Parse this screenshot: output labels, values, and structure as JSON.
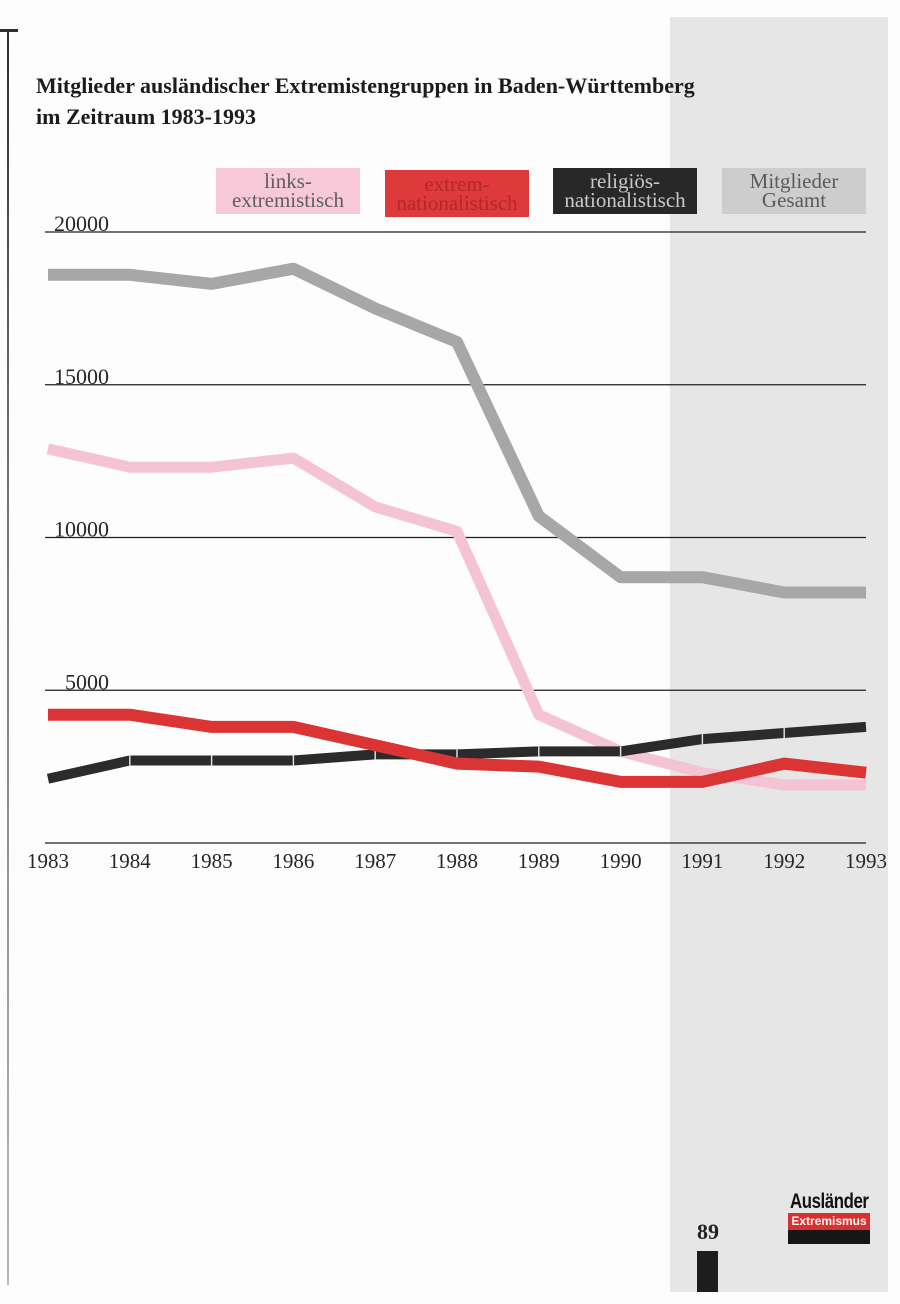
{
  "chart_data": {
    "type": "line",
    "title": [
      "Mitglieder ausländischer Extremistengruppen in Baden-Württemberg",
      "im Zeitraum 1983-1993"
    ],
    "x": [
      1983,
      1984,
      1985,
      1986,
      1987,
      1988,
      1989,
      1990,
      1991,
      1992,
      1993
    ],
    "ylim": [
      0,
      20000
    ],
    "yticks": [
      20000,
      15000,
      10000,
      5000
    ],
    "grid": true,
    "legend_position": "top",
    "series": [
      {
        "name_lines": [
          "links-",
          "extremistisch"
        ],
        "color": "#f5c4d4",
        "legend_bg": "#f8c9d9",
        "legend_text": "#5e5e5e",
        "values": [
          12900,
          12300,
          12300,
          12600,
          11000,
          10200,
          4200,
          3000,
          2300,
          1900,
          1900
        ]
      },
      {
        "name_lines": [
          "extrem-",
          "nationalistisch"
        ],
        "color": "#db3434",
        "legend_bg": "#de393b",
        "legend_text": "#b4272b",
        "values": [
          4200,
          4200,
          3800,
          3800,
          3200,
          2600,
          2500,
          2000,
          2000,
          2600,
          2300
        ]
      },
      {
        "name_lines": [
          "religiös-",
          "nationalistisch"
        ],
        "color": "#2b2b2b",
        "legend_bg": "#282828",
        "legend_text": "#c9c9c9",
        "values": [
          2100,
          2700,
          2700,
          2700,
          2900,
          2900,
          3000,
          3000,
          3400,
          3600,
          3800
        ]
      },
      {
        "name_lines": [
          "Mitglieder",
          "Gesamt"
        ],
        "color": "#a7a7a7",
        "legend_bg": "#cdcdcd",
        "legend_text": "#5a5a5a",
        "values": [
          18600,
          18600,
          18300,
          18800,
          17500,
          16400,
          10700,
          8700,
          8700,
          8200,
          8200
        ]
      }
    ]
  },
  "page": {
    "number": "89"
  },
  "logo": {
    "line1": "Ausländer",
    "line2": "Extremismus",
    "band_color": "#d8312f"
  }
}
